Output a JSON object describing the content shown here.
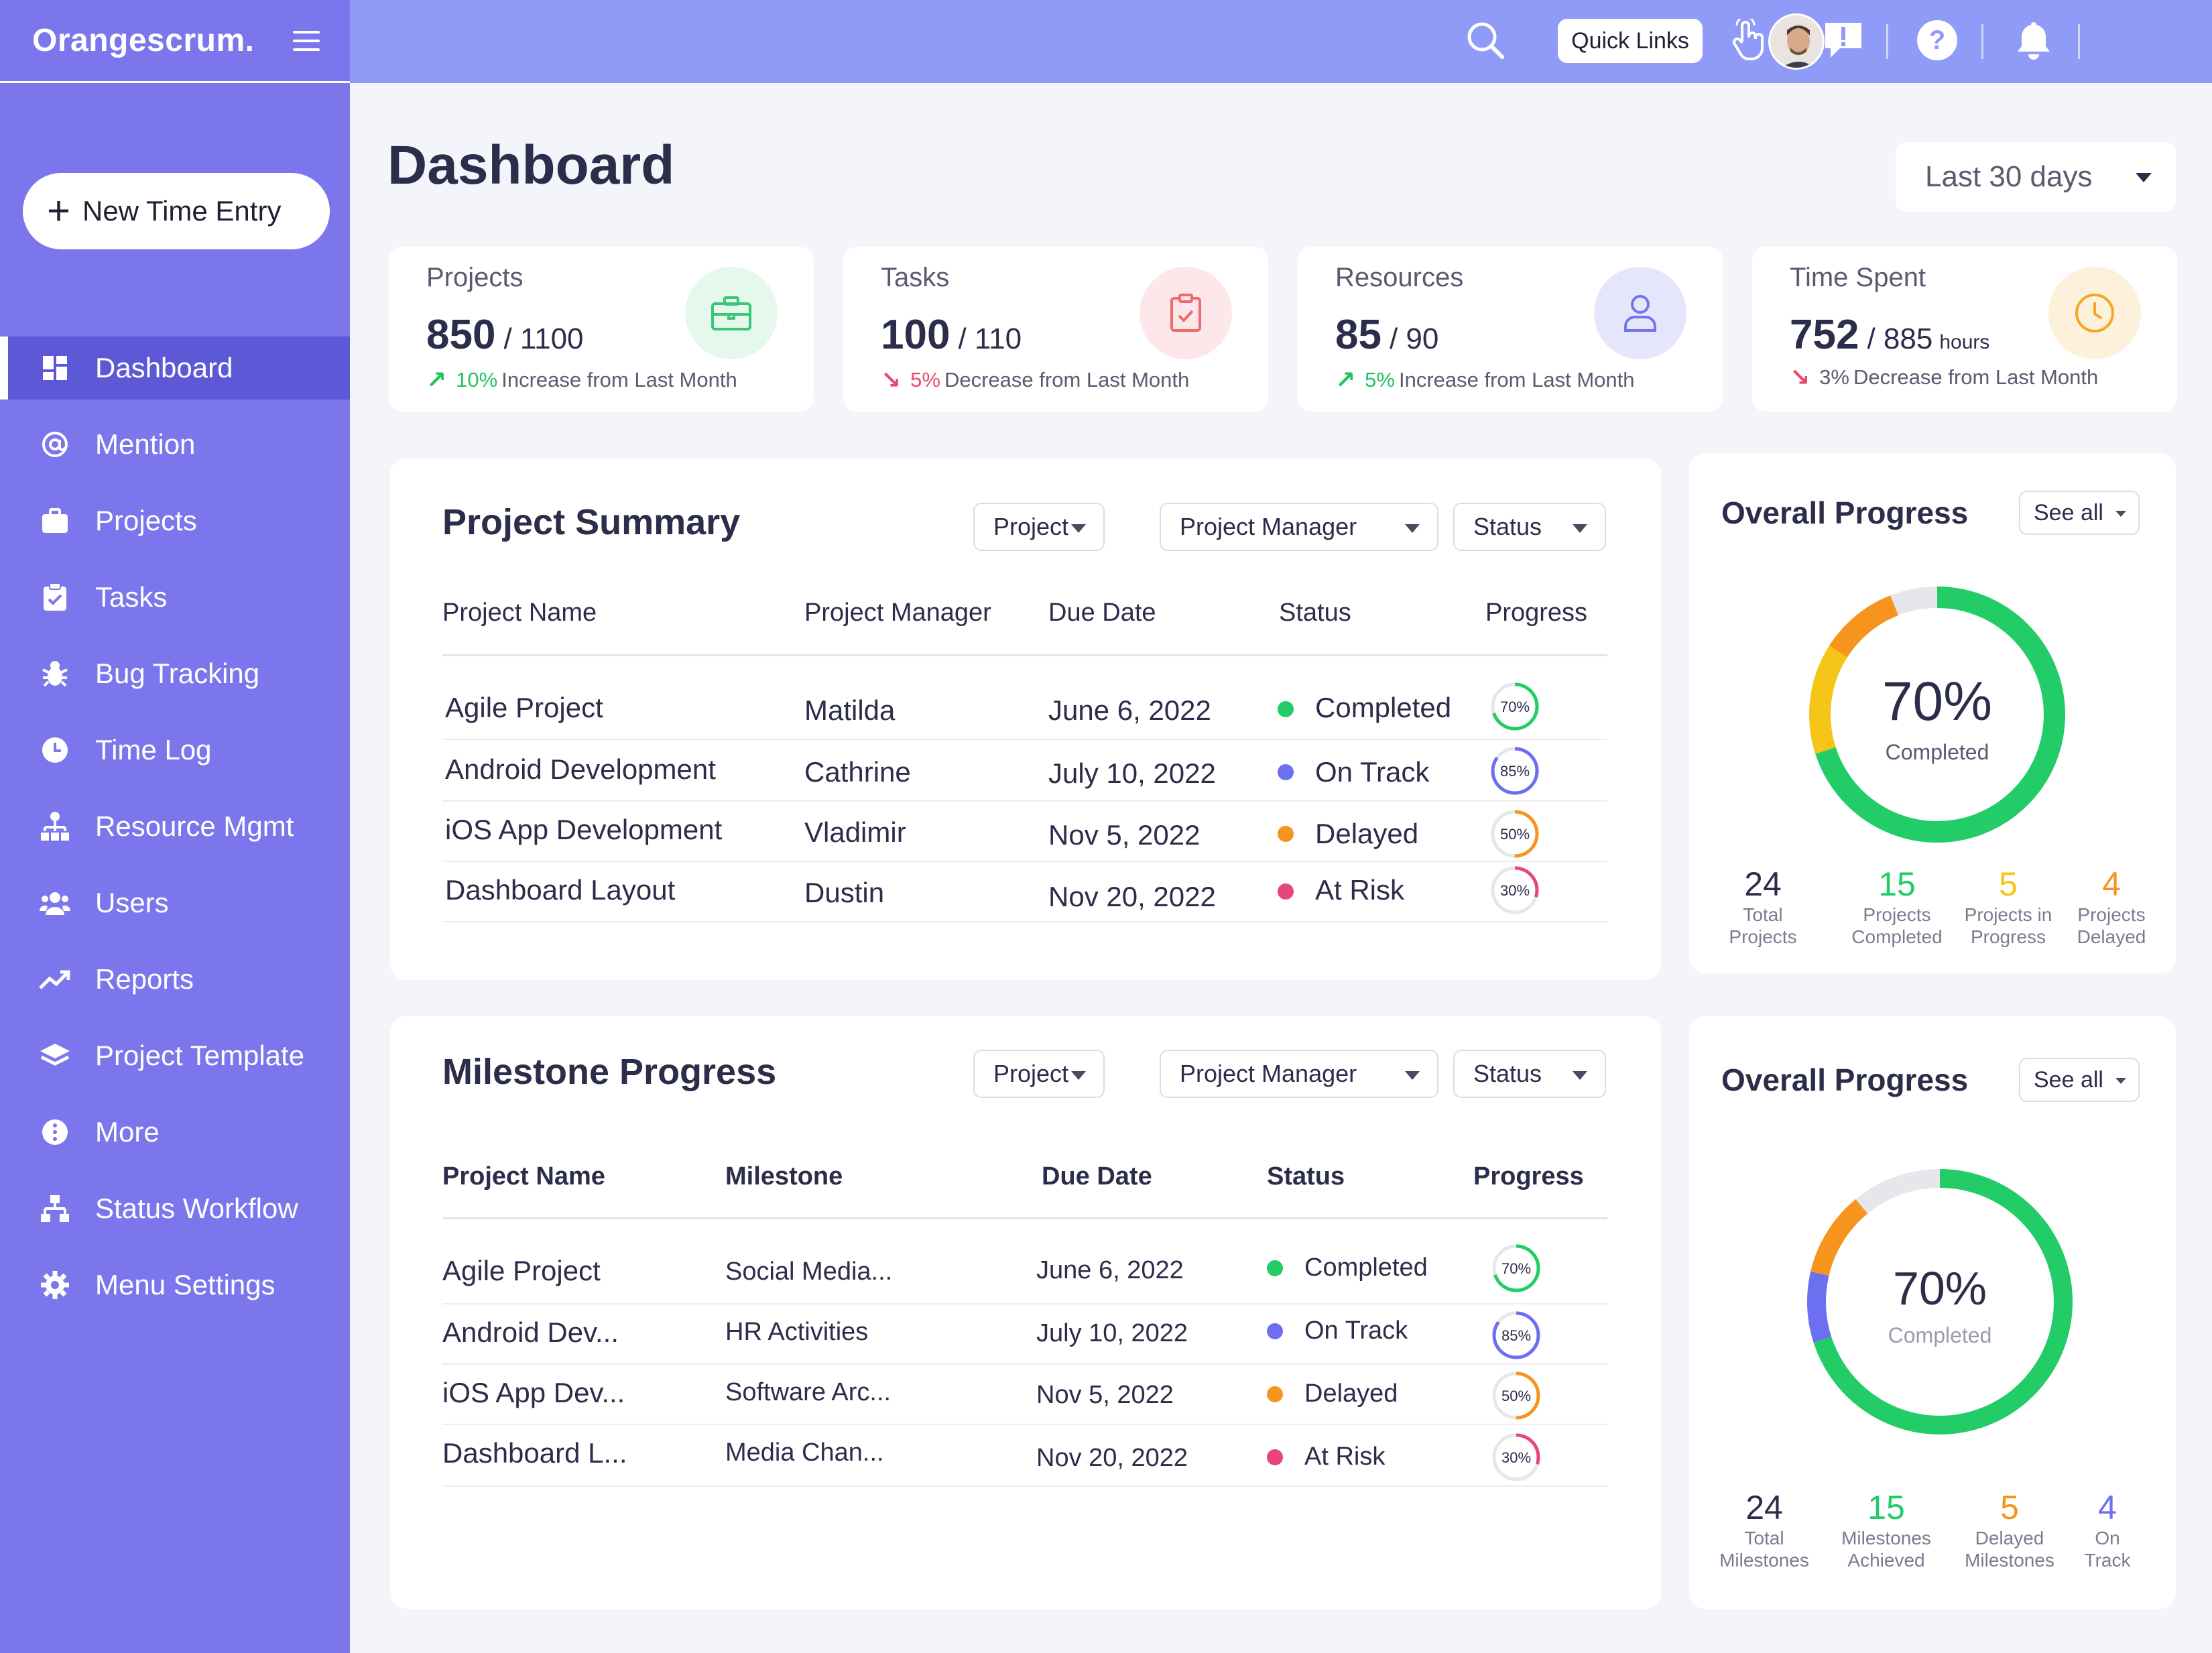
{
  "app": {
    "name": "Orangescrum."
  },
  "sidebar": {
    "new_entry_label": "New Time Entry",
    "items": [
      {
        "label": "Dashboard",
        "icon": "dashboard-icon"
      },
      {
        "label": "Mention",
        "icon": "at-icon"
      },
      {
        "label": "Projects",
        "icon": "briefcase-icon"
      },
      {
        "label": "Tasks",
        "icon": "clipboard-check-icon"
      },
      {
        "label": "Bug Tracking",
        "icon": "bug-icon"
      },
      {
        "label": "Time Log",
        "icon": "clock-icon"
      },
      {
        "label": "Resource Mgmt",
        "icon": "hierarchy-icon"
      },
      {
        "label": "Users",
        "icon": "users-icon"
      },
      {
        "label": "Reports",
        "icon": "trend-icon"
      },
      {
        "label": "Project Template",
        "icon": "layers-icon"
      },
      {
        "label": "More",
        "icon": "more-icon"
      },
      {
        "label": "Status Workflow",
        "icon": "workflow-icon"
      },
      {
        "label": "Menu Settings",
        "icon": "gear-icon"
      }
    ]
  },
  "topbar": {
    "quick_links": "Quick Links"
  },
  "page": {
    "title": "Dashboard",
    "range": "Last 30 days"
  },
  "kpis": [
    {
      "label": "Projects",
      "value": "850",
      "total": "/ 1100",
      "suffix": "",
      "pct": "10%",
      "trend_text": "Increase from Last Month",
      "direction": "up"
    },
    {
      "label": "Tasks",
      "value": "100",
      "total": "/ 110",
      "suffix": "",
      "pct": "5%",
      "trend_text": "Decrease from Last Month",
      "direction": "down"
    },
    {
      "label": "Resources",
      "value": "85",
      "total": "/ 90",
      "suffix": "",
      "pct": "5%",
      "trend_text": "Increase from Last Month",
      "direction": "up"
    },
    {
      "label": "Time Spent",
      "value": "752",
      "total": "/ 885",
      "suffix": "hours",
      "pct": "3%",
      "trend_text": "Decrease from Last Month",
      "direction": "down_plain"
    }
  ],
  "colors": {
    "green": "#22cc66",
    "blue": "#6b6ff0",
    "orange": "#f7941d",
    "pink": "#e8457a",
    "up": "#21c45d",
    "down": "#e84a6f"
  },
  "project_summary": {
    "title": "Project Summary",
    "filters": [
      "Project",
      "Project Manager",
      "Status"
    ],
    "columns": [
      "Project Name",
      "Project Manager",
      "Due Date",
      "Status",
      "Progress"
    ],
    "rows": [
      {
        "name": "Agile Project",
        "manager": "Matilda",
        "due": "June 6, 2022",
        "status": "Completed",
        "progress": 70,
        "progress_label": "70%"
      },
      {
        "name": "Android Development",
        "manager": "Cathrine",
        "due": "July 10, 2022",
        "status": "On Track",
        "progress": 85,
        "progress_label": "85%"
      },
      {
        "name": "iOS App Development",
        "manager": "Vladimir",
        "due": "Nov 5, 2022",
        "status": "Delayed",
        "progress": 50,
        "progress_label": "50%"
      },
      {
        "name": "Dashboard Layout",
        "manager": "Dustin",
        "due": "Nov 20, 2022",
        "status": "At Risk",
        "progress": 30,
        "progress_label": "30%"
      }
    ]
  },
  "milestone_progress": {
    "title": "Milestone Progress",
    "filters": [
      "Project",
      "Project Manager",
      "Status"
    ],
    "columns": [
      "Project Name",
      "Milestone",
      "Due Date",
      "Status",
      "Progress"
    ],
    "rows": [
      {
        "name": "Agile Project",
        "milestone": "Social Media...",
        "due": "June 6, 2022",
        "status": "Completed",
        "progress": 70,
        "progress_label": "70%"
      },
      {
        "name": "Android Dev...",
        "milestone": "HR Activities",
        "due": "July 10, 2022",
        "status": "On Track",
        "progress": 85,
        "progress_label": "85%"
      },
      {
        "name": "iOS App Dev...",
        "milestone": "Software Arc...",
        "due": "Nov 5, 2022",
        "status": "Delayed",
        "progress": 50,
        "progress_label": "50%"
      },
      {
        "name": "Dashboard L...",
        "milestone": "Media Chan...",
        "due": "Nov 20, 2022",
        "status": "At Risk",
        "progress": 30,
        "progress_label": "30%"
      }
    ]
  },
  "overall_progress_projects": {
    "title": "Overall Progress",
    "see_all": "See all",
    "percent": "70%",
    "caption": "Completed",
    "stats": [
      {
        "value": "24",
        "label1": "Total",
        "label2": "Projects",
        "color": "#2c2d4a"
      },
      {
        "value": "15",
        "label1": "Projects",
        "label2": "Completed",
        "color": "#22cc66"
      },
      {
        "value": "5",
        "label1": "Projects in",
        "label2": "Progress",
        "color": "#f5c518"
      },
      {
        "value": "4",
        "label1": "Projects",
        "label2": "Delayed",
        "color": "#f7941d"
      }
    ]
  },
  "overall_progress_milestones": {
    "title": "Overall Progress",
    "see_all": "See all",
    "percent": "70%",
    "caption": "Completed",
    "stats": [
      {
        "value": "24",
        "label1": "Total",
        "label2": "Milestones",
        "color": "#2c2d4a"
      },
      {
        "value": "15",
        "label1": "Milestones",
        "label2": "Achieved",
        "color": "#22cc66"
      },
      {
        "value": "5",
        "label1": "Delayed",
        "label2": "Milestones",
        "color": "#f7941d"
      },
      {
        "value": "4",
        "label1": "On",
        "label2": "Track",
        "color": "#6b6ff0"
      }
    ]
  }
}
